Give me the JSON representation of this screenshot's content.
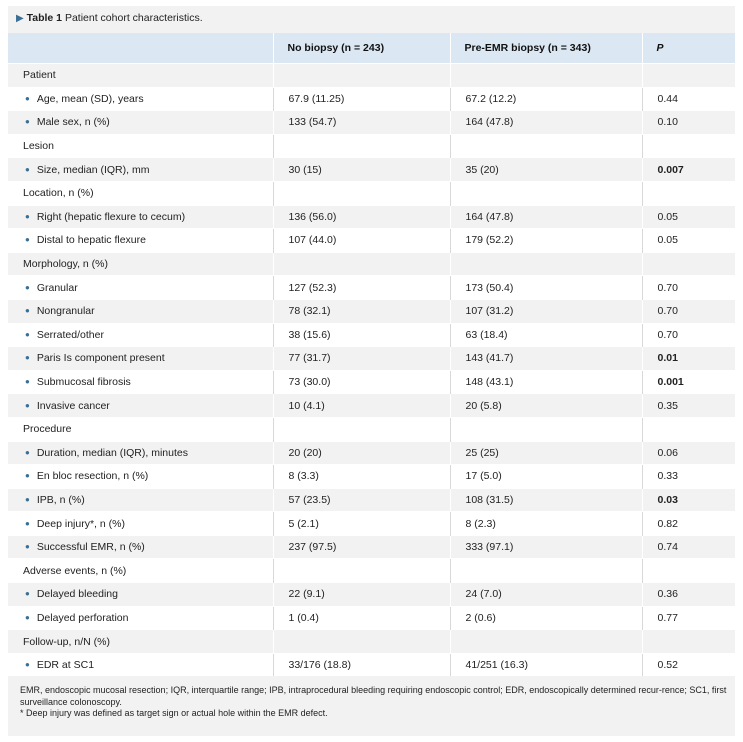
{
  "caption": {
    "arrow": "▶",
    "label": "Table 1",
    "text": "Patient cohort characteristics."
  },
  "headers": [
    "",
    "No biopsy (n = 243)",
    "Pre-EMR biopsy (n = 343)",
    "P"
  ],
  "rows": [
    {
      "type": "section",
      "label": "Patient"
    },
    {
      "type": "item",
      "label": "Age, mean (SD), years",
      "a": "67.9 (11.25)",
      "b": "67.2 (12.2)",
      "p": "0.44",
      "bold": false
    },
    {
      "type": "item",
      "label": "Male sex, n (%)",
      "a": "133 (54.7)",
      "b": "164 (47.8)",
      "p": "0.10",
      "bold": false
    },
    {
      "type": "section",
      "label": "Lesion"
    },
    {
      "type": "item",
      "label": "Size, median (IQR), mm",
      "a": "30 (15)",
      "b": "35 (20)",
      "p": "0.007",
      "bold": true
    },
    {
      "type": "section",
      "label": "Location, n (%)"
    },
    {
      "type": "item",
      "label": "Right (hepatic flexure to cecum)",
      "a": "136 (56.0)",
      "b": "164 (47.8)",
      "p": "0.05",
      "bold": false
    },
    {
      "type": "item",
      "label": "Distal to hepatic flexure",
      "a": "107 (44.0)",
      "b": "179 (52.2)",
      "p": "0.05",
      "bold": false
    },
    {
      "type": "section",
      "label": "Morphology, n (%)"
    },
    {
      "type": "item",
      "label": "Granular",
      "a": "127 (52.3)",
      "b": "173 (50.4)",
      "p": "0.70",
      "bold": false
    },
    {
      "type": "item",
      "label": "Nongranular",
      "a": "78 (32.1)",
      "b": "107 (31.2)",
      "p": "0.70",
      "bold": false
    },
    {
      "type": "item",
      "label": "Serrated/other",
      "a": "38 (15.6)",
      "b": "63 (18.4)",
      "p": "0.70",
      "bold": false
    },
    {
      "type": "item",
      "label": "Paris Is component present",
      "a": "77 (31.7)",
      "b": "143 (41.7)",
      "p": "0.01",
      "bold": true
    },
    {
      "type": "item",
      "label": "Submucosal fibrosis",
      "a": "73 (30.0)",
      "b": "148 (43.1)",
      "p": "0.001",
      "bold": true
    },
    {
      "type": "item",
      "label": "Invasive cancer",
      "a": "10 (4.1)",
      "b": "20 (5.8)",
      "p": "0.35",
      "bold": false
    },
    {
      "type": "section",
      "label": "Procedure"
    },
    {
      "type": "item",
      "label": "Duration, median (IQR), minutes",
      "a": "20 (20)",
      "b": "25 (25)",
      "p": "0.06",
      "bold": false
    },
    {
      "type": "item",
      "label": "En bloc resection, n (%)",
      "a": "8 (3.3)",
      "b": "17 (5.0)",
      "p": "0.33",
      "bold": false
    },
    {
      "type": "item",
      "label": "IPB, n (%)",
      "a": "57 (23.5)",
      "b": "108 (31.5)",
      "p": "0.03",
      "bold": true
    },
    {
      "type": "item",
      "label": "Deep injury*, n (%)",
      "a": "5 (2.1)",
      "b": "8 (2.3)",
      "p": "0.82",
      "bold": false
    },
    {
      "type": "item",
      "label": "Successful EMR, n (%)",
      "a": "237 (97.5)",
      "b": "333 (97.1)",
      "p": "0.74",
      "bold": false
    },
    {
      "type": "section",
      "label": "Adverse events, n (%)"
    },
    {
      "type": "item",
      "label": "Delayed bleeding",
      "a": "22 (9.1)",
      "b": "24 (7.0)",
      "p": "0.36",
      "bold": false
    },
    {
      "type": "item",
      "label": "Delayed perforation",
      "a": "1 (0.4)",
      "b": "2 (0.6)",
      "p": "0.77",
      "bold": false
    },
    {
      "type": "section",
      "label": "Follow-up, n/N (%)"
    },
    {
      "type": "item",
      "label": "EDR at SC1",
      "a": "33/176 (18.8)",
      "b": "41/251 (16.3)",
      "p": "0.52",
      "bold": false
    }
  ],
  "footnotes": [
    "EMR, endoscopic mucosal resection; IQR, interquartile range; IPB, intraprocedural bleeding requiring endoscopic control; EDR, endoscopically determined recur-rence; SC1, first surveillance colonoscopy.",
    "* Deep injury was defined as target sign or actual hole within the EMR defect."
  ],
  "colors": {
    "header_bg": "#dbe7f3",
    "bullet": "#3a6f95",
    "odd_row": "#f2f2f2",
    "even_row": "#ffffff"
  },
  "icons": {
    "bullet": "bullet-icon",
    "caption_arrow": "triangle-right-icon"
  }
}
